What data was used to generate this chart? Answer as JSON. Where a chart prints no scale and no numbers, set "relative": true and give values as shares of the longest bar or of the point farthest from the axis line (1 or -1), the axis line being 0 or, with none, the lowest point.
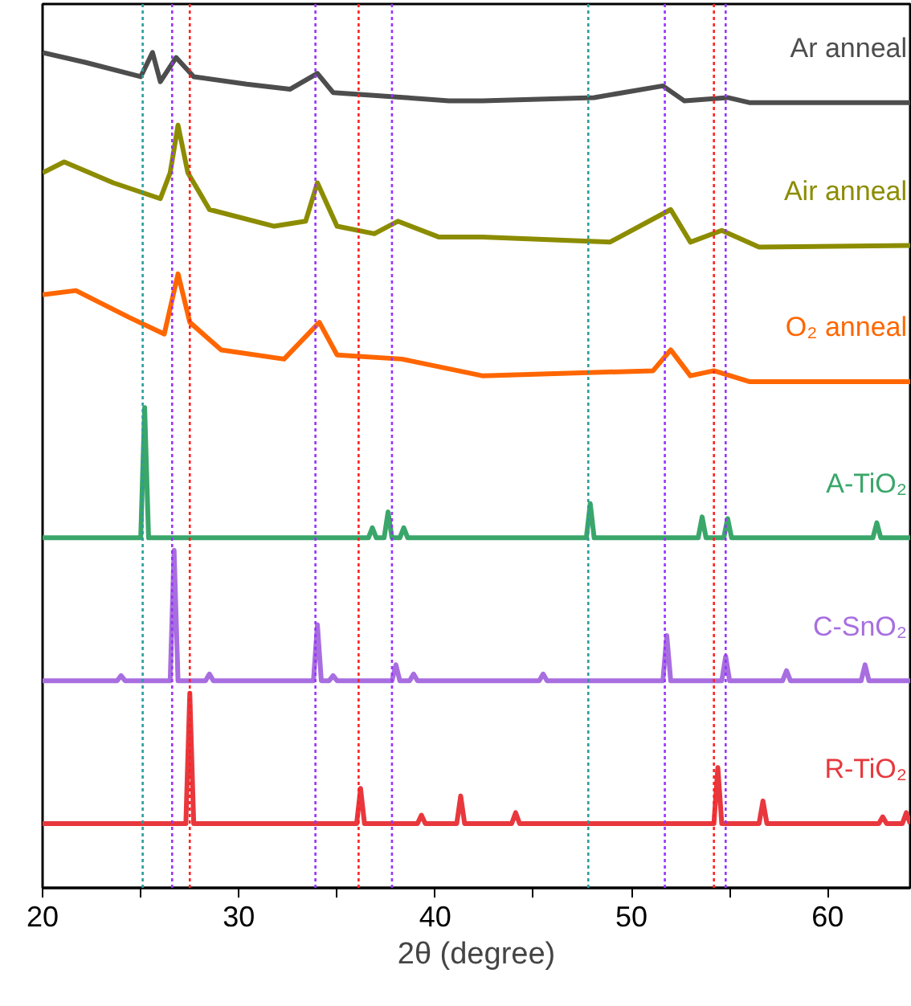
{
  "chart_data": {
    "type": "line",
    "relative": true,
    "xlabel": "2θ (degree)",
    "xlim": [
      20,
      64.2
    ],
    "xticks": [
      20,
      {
        "value": 25,
        "label": null
      },
      30,
      {
        "value": 35,
        "label": null
      },
      40,
      {
        "value": 45,
        "label": null
      },
      50,
      {
        "value": 55,
        "label": null
      },
      60
    ],
    "grid": false,
    "line_style": "solid",
    "marker": "none",
    "series": [
      {
        "name": "Ar anneal",
        "color": "#4d4d4d",
        "x": [
          20.0,
          22.2,
          25.0,
          25.6,
          26.0,
          26.8,
          27.7,
          30.4,
          32.6,
          34.0,
          34.8,
          38.5,
          40.7,
          42.4,
          48.1,
          51.6,
          52.7,
          54.9,
          56.0,
          64.2
        ],
        "values": [
          1.0,
          0.988,
          0.971,
          1.0,
          0.965,
          0.994,
          0.971,
          0.962,
          0.956,
          0.975,
          0.952,
          0.946,
          0.942,
          0.942,
          0.946,
          0.96,
          0.942,
          0.946,
          0.94,
          0.94
        ]
      },
      {
        "name": "Air anneal",
        "color": "#8c8c00",
        "x": [
          20.0,
          21.1,
          23.6,
          26.0,
          26.5,
          26.9,
          27.4,
          28.5,
          31.8,
          33.4,
          34.0,
          35.0,
          36.9,
          38.1,
          40.2,
          42.4,
          48.9,
          52.0,
          53.0,
          54.6,
          56.5,
          64.2
        ],
        "values": [
          0.856,
          0.869,
          0.844,
          0.825,
          0.856,
          0.913,
          0.856,
          0.812,
          0.792,
          0.798,
          0.844,
          0.792,
          0.783,
          0.798,
          0.779,
          0.779,
          0.773,
          0.812,
          0.773,
          0.787,
          0.767,
          0.769
        ]
      },
      {
        "name": "O₂ anneal",
        "color": "#ff6600",
        "x": [
          20.0,
          21.7,
          24.4,
          26.2,
          26.9,
          27.5,
          29.1,
          32.3,
          34.1,
          35.0,
          38.3,
          42.4,
          51.1,
          52.0,
          53.0,
          54.2,
          56.0,
          64.2
        ],
        "values": [
          0.71,
          0.715,
          0.683,
          0.663,
          0.735,
          0.677,
          0.644,
          0.633,
          0.677,
          0.638,
          0.633,
          0.613,
          0.619,
          0.644,
          0.613,
          0.619,
          0.606,
          0.606
        ]
      },
      {
        "name": "A-TiO₂",
        "color": "#3aa66a",
        "x": [
          20.0,
          25.0,
          25.2,
          25.4,
          36.6,
          36.8,
          37.0,
          37.4,
          37.6,
          37.8,
          38.2,
          38.4,
          38.6,
          47.7,
          47.9,
          48.1,
          53.4,
          53.6,
          53.8,
          54.7,
          54.9,
          55.1,
          62.3,
          62.5,
          62.7,
          64.2
        ],
        "values": [
          0.419,
          0.419,
          0.575,
          0.419,
          0.419,
          0.431,
          0.419,
          0.419,
          0.45,
          0.419,
          0.419,
          0.431,
          0.419,
          0.419,
          0.46,
          0.419,
          0.419,
          0.444,
          0.419,
          0.419,
          0.442,
          0.419,
          0.419,
          0.437,
          0.419,
          0.419
        ]
      },
      {
        "name": "C-SnO₂",
        "color": "#a86ee0",
        "x": [
          20.0,
          23.8,
          24.0,
          24.2,
          26.5,
          26.7,
          26.9,
          28.3,
          28.5,
          28.7,
          33.8,
          34.0,
          34.2,
          34.6,
          34.8,
          35.0,
          37.8,
          38.0,
          38.2,
          38.7,
          38.9,
          39.1,
          45.3,
          45.5,
          45.7,
          51.6,
          51.8,
          52.0,
          54.6,
          54.8,
          55.0,
          57.7,
          57.9,
          58.1,
          61.7,
          61.9,
          62.1,
          64.2
        ],
        "values": [
          0.248,
          0.248,
          0.254,
          0.248,
          0.248,
          0.404,
          0.248,
          0.248,
          0.256,
          0.248,
          0.248,
          0.315,
          0.248,
          0.248,
          0.254,
          0.248,
          0.248,
          0.267,
          0.248,
          0.248,
          0.256,
          0.248,
          0.248,
          0.256,
          0.248,
          0.248,
          0.302,
          0.248,
          0.248,
          0.277,
          0.248,
          0.248,
          0.26,
          0.248,
          0.248,
          0.267,
          0.248,
          0.248
        ]
      },
      {
        "name": "R-TiO₂",
        "color": "#e8383d",
        "x": [
          20.0,
          27.3,
          27.5,
          27.7,
          36.0,
          36.2,
          36.4,
          39.1,
          39.3,
          39.5,
          41.1,
          41.3,
          41.5,
          43.9,
          44.1,
          44.3,
          54.2,
          54.4,
          54.6,
          56.5,
          56.7,
          56.9,
          62.6,
          62.8,
          63.0,
          63.8,
          64.0,
          64.2
        ],
        "values": [
          0.077,
          0.077,
          0.233,
          0.077,
          0.077,
          0.119,
          0.077,
          0.077,
          0.087,
          0.077,
          0.077,
          0.11,
          0.077,
          0.077,
          0.09,
          0.077,
          0.077,
          0.144,
          0.077,
          0.077,
          0.104,
          0.077,
          0.077,
          0.085,
          0.077,
          0.077,
          0.09,
          0.077
        ]
      }
    ],
    "ref_lines": [
      {
        "axis": "x",
        "value": 25.1,
        "color": "#2a9d9d",
        "line_style": "dotted"
      },
      {
        "axis": "x",
        "value": 47.8,
        "color": "#2a9d9d",
        "line_style": "dotted"
      },
      {
        "axis": "x",
        "value": 26.6,
        "color": "#9933ff",
        "line_style": "dotted"
      },
      {
        "axis": "x",
        "value": 33.9,
        "color": "#9933ff",
        "line_style": "dotted"
      },
      {
        "axis": "x",
        "value": 37.8,
        "color": "#9933ff",
        "line_style": "dotted"
      },
      {
        "axis": "x",
        "value": 51.7,
        "color": "#9933ff",
        "line_style": "dotted"
      },
      {
        "axis": "x",
        "value": 54.8,
        "color": "#9933ff",
        "line_style": "dotted"
      },
      {
        "axis": "x",
        "value": 27.5,
        "color": "#ff2222",
        "line_style": "dotted"
      },
      {
        "axis": "x",
        "value": 36.1,
        "color": "#ff2222",
        "line_style": "dotted"
      },
      {
        "axis": "x",
        "value": 54.2,
        "color": "#ff2222",
        "line_style": "dotted"
      }
    ]
  }
}
